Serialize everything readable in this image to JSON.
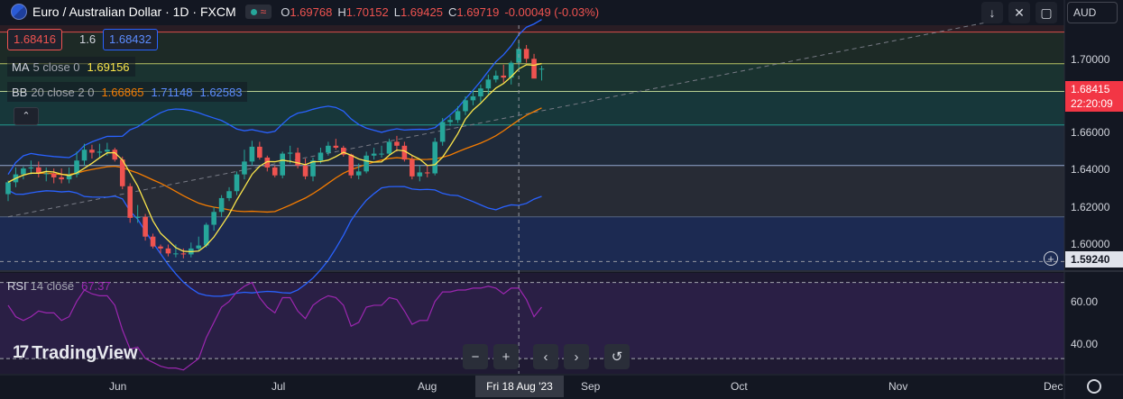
{
  "header": {
    "symbol_title": "Euro / Australian Dollar · 1D · FXCM",
    "open_label": "O",
    "open_value": "1.69768",
    "high_label": "H",
    "high_value": "1.70152",
    "low_label": "L",
    "low_value": "1.69425",
    "close_label": "C",
    "close_value": "1.69719",
    "change": "-0.00049 (-0.03%)",
    "live_icon": "live-indicator-dot",
    "wave_icon": "wave-icon",
    "wave_glyph": "≈"
  },
  "trade": {
    "sell_price": "1.68416",
    "spread": "1.6",
    "buy_price": "1.68432"
  },
  "indicators": {
    "ma": {
      "name": "MA",
      "params": "5 close 0",
      "value": "1.69156",
      "color": "#fbe64b"
    },
    "bb": {
      "name": "BB",
      "params": "20 close 2 0",
      "basis": "1.66865",
      "upper": "1.71148",
      "lower": "1.62583",
      "basis_color": "#f57c00",
      "band_color": "#2962ff"
    },
    "rsi": {
      "name": "RSI",
      "params": "14 close",
      "value": "67.37",
      "color": "#9c27b0"
    }
  },
  "toolbar": {
    "currency": "AUD",
    "collapse_glyph": "⌃"
  },
  "price_scale": {
    "ticks": [
      "1.70000",
      "1.68000",
      "1.66000",
      "1.64000",
      "1.62000",
      "1.60000"
    ],
    "last_price": "1.68415",
    "countdown": "22:20:09",
    "crosshair_price": "1.59240",
    "rsi_ticks": [
      "60.00",
      "40.00"
    ]
  },
  "time_scale": {
    "ticks": [
      "Jun",
      "Jul",
      "Aug",
      "Sep",
      "Oct",
      "Nov",
      "Dec"
    ],
    "crosshair_label": "Fri 18 Aug '23"
  },
  "nav": {
    "zoom_out": "−",
    "zoom_in": "+",
    "scroll_left": "‹",
    "scroll_right": "›",
    "reset": "↺"
  },
  "brand": {
    "name": "TradingView",
    "mark": "17"
  },
  "colors": {
    "bull": "#26a69a",
    "bear": "#ef5350",
    "background": "#131722"
  },
  "chart_data": {
    "type": "candlestick",
    "title": "Euro / Australian Dollar · 1D · FXCM",
    "x": [
      "2023-05-17",
      "2023-05-18",
      "2023-05-19",
      "2023-05-22",
      "2023-05-23",
      "2023-05-24",
      "2023-05-25",
      "2023-05-26",
      "2023-05-29",
      "2023-05-30",
      "2023-05-31",
      "2023-06-01",
      "2023-06-02",
      "2023-06-05",
      "2023-06-06",
      "2023-06-07",
      "2023-06-08",
      "2023-06-09",
      "2023-06-12",
      "2023-06-13",
      "2023-06-14",
      "2023-06-15",
      "2023-06-16",
      "2023-06-19",
      "2023-06-20",
      "2023-06-21",
      "2023-06-22",
      "2023-06-23",
      "2023-06-26",
      "2023-06-27",
      "2023-06-28",
      "2023-06-29",
      "2023-06-30",
      "2023-07-03",
      "2023-07-04",
      "2023-07-05",
      "2023-07-06",
      "2023-07-07",
      "2023-07-10",
      "2023-07-11",
      "2023-07-12",
      "2023-07-13",
      "2023-07-14",
      "2023-07-17",
      "2023-07-18",
      "2023-07-19",
      "2023-07-20",
      "2023-07-21",
      "2023-07-24",
      "2023-07-25",
      "2023-07-26",
      "2023-07-27",
      "2023-07-28",
      "2023-07-31",
      "2023-08-01",
      "2023-08-02",
      "2023-08-03",
      "2023-08-04",
      "2023-08-07",
      "2023-08-08",
      "2023-08-09",
      "2023-08-10",
      "2023-08-11",
      "2023-08-14",
      "2023-08-15",
      "2023-08-16",
      "2023-08-17",
      "2023-08-18",
      "2023-08-21",
      "2023-08-22",
      "2023-08-23"
    ],
    "open": [
      1.6265,
      1.6325,
      1.6365,
      1.6395,
      1.64,
      1.637,
      1.637,
      1.635,
      1.634,
      1.6365,
      1.6435,
      1.649,
      1.6475,
      1.648,
      1.649,
      1.644,
      1.6305,
      1.6145,
      1.615,
      1.605,
      1.6,
      1.599,
      1.5965,
      1.5965,
      1.596,
      1.599,
      1.6005,
      1.611,
      1.6175,
      1.6245,
      1.628,
      1.6365,
      1.643,
      1.6505,
      1.645,
      1.64,
      1.636,
      1.647,
      1.6475,
      1.641,
      1.6355,
      1.6435,
      1.6475,
      1.651,
      1.65,
      1.6465,
      1.636,
      1.638,
      1.646,
      1.647,
      1.647,
      1.653,
      1.651,
      1.644,
      1.6355,
      1.6375,
      1.637,
      1.653,
      1.663,
      1.664,
      1.6685,
      1.674,
      1.676,
      1.68,
      1.6845,
      1.6865,
      1.6855,
      1.693,
      1.7,
      1.695,
      1.69
    ],
    "high": [
      1.6335,
      1.64,
      1.6405,
      1.6435,
      1.643,
      1.64,
      1.6395,
      1.6395,
      1.64,
      1.648,
      1.652,
      1.6515,
      1.652,
      1.6525,
      1.65,
      1.6455,
      1.632,
      1.621,
      1.6165,
      1.6065,
      1.601,
      1.601,
      1.601,
      1.599,
      1.602,
      1.605,
      1.612,
      1.62,
      1.626,
      1.63,
      1.638,
      1.649,
      1.6535,
      1.653,
      1.646,
      1.641,
      1.648,
      1.651,
      1.65,
      1.6445,
      1.645,
      1.65,
      1.653,
      1.6545,
      1.651,
      1.647,
      1.642,
      1.648,
      1.65,
      1.651,
      1.6545,
      1.656,
      1.653,
      1.646,
      1.641,
      1.641,
      1.655,
      1.665,
      1.666,
      1.671,
      1.676,
      1.679,
      1.682,
      1.687,
      1.689,
      1.692,
      1.694,
      1.704,
      1.702,
      1.6975,
      1.6915
    ],
    "low": [
      1.623,
      1.63,
      1.634,
      1.6365,
      1.635,
      1.633,
      1.632,
      1.632,
      1.632,
      1.635,
      1.641,
      1.6445,
      1.645,
      1.646,
      1.643,
      1.629,
      1.612,
      1.612,
      1.603,
      1.599,
      1.5965,
      1.595,
      1.5945,
      1.594,
      1.5945,
      1.598,
      1.5995,
      1.608,
      1.615,
      1.623,
      1.626,
      1.634,
      1.641,
      1.644,
      1.638,
      1.635,
      1.6345,
      1.642,
      1.6395,
      1.634,
      1.633,
      1.642,
      1.646,
      1.649,
      1.6455,
      1.6345,
      1.634,
      1.637,
      1.644,
      1.645,
      1.646,
      1.648,
      1.643,
      1.634,
      1.633,
      1.635,
      1.636,
      1.651,
      1.661,
      1.6625,
      1.6665,
      1.6715,
      1.673,
      1.677,
      1.683,
      1.683,
      1.682,
      1.69,
      1.693,
      1.686,
      1.684
    ],
    "close": [
      1.6325,
      1.6365,
      1.6395,
      1.64,
      1.637,
      1.637,
      1.635,
      1.634,
      1.6365,
      1.6435,
      1.649,
      1.6475,
      1.648,
      1.649,
      1.644,
      1.6305,
      1.6145,
      1.615,
      1.605,
      1.6,
      1.599,
      1.5965,
      1.5965,
      1.596,
      1.599,
      1.6005,
      1.611,
      1.6175,
      1.6245,
      1.628,
      1.6365,
      1.643,
      1.6505,
      1.645,
      1.64,
      1.636,
      1.647,
      1.6475,
      1.641,
      1.6355,
      1.6435,
      1.6475,
      1.651,
      1.65,
      1.6465,
      1.636,
      1.638,
      1.646,
      1.647,
      1.647,
      1.653,
      1.651,
      1.644,
      1.6355,
      1.6375,
      1.637,
      1.653,
      1.663,
      1.664,
      1.6685,
      1.674,
      1.676,
      1.68,
      1.6845,
      1.6865,
      1.6855,
      1.693,
      1.7,
      1.695,
      1.685,
      1.69
    ],
    "ma5_last": 1.69156,
    "bb_last": {
      "basis": 1.66865,
      "upper": 1.71148,
      "lower": 1.62583
    },
    "rsi": [
      58,
      52,
      50,
      52,
      55,
      54,
      54,
      50,
      52,
      60,
      66,
      64,
      63,
      63,
      58,
      45,
      35,
      36,
      30,
      28,
      26,
      25,
      25,
      24,
      27,
      30,
      41,
      49,
      57,
      60,
      65,
      68,
      70,
      62,
      57,
      54,
      62,
      62,
      55,
      51,
      58,
      61,
      63,
      62,
      58,
      47,
      49,
      57,
      58,
      58,
      62,
      61,
      55,
      48,
      50,
      50,
      60,
      65,
      65,
      66,
      66,
      67,
      67,
      68,
      67,
      64,
      67,
      67,
      61,
      52,
      57
    ],
    "ylim": [
      1.588,
      1.712
    ],
    "rsi_ylim": [
      22,
      75
    ],
    "horizontal_levels": [
      1.7085,
      1.6925,
      1.6785,
      1.6615,
      1.641,
      1.615,
      1.5924
    ],
    "rsi_levels": [
      70,
      30
    ],
    "crosshair": {
      "x": "2023-08-18",
      "y": 1.5924
    },
    "xlabel": "",
    "ylabel": ""
  }
}
